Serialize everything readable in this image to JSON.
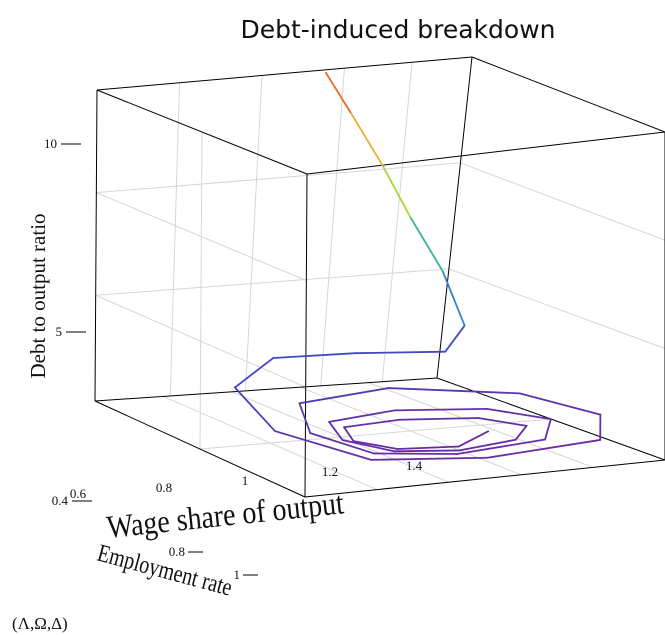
{
  "chart_data": {
    "type": "line",
    "projection": "3d",
    "title": "Debt-induced breakdown",
    "caption": "(Λ,Ω,Δ)",
    "x_axis": {
      "label": "Wage share of output",
      "ticks": [
        "0.6",
        "0.8",
        "1",
        "1.2",
        "1.4"
      ]
    },
    "y_axis": {
      "label": "Employment rate",
      "ticks": [
        "0.8",
        "1"
      ]
    },
    "z_axis": {
      "label": "Debt to output ratio",
      "ticks": [
        "0.4",
        "5",
        "10"
      ]
    },
    "grid": true,
    "series": [
      {
        "type": "trajectory",
        "color_scale": [
          "#6a2aa5",
          "#3a4fc8",
          "#2f9fd0",
          "#37c46a",
          "#d8e02a",
          "#f0a030",
          "#e8452c"
        ],
        "points": [
          [
            1.3,
            0.88,
            0.9
          ],
          [
            1.16,
            0.93,
            0.8
          ],
          [
            1.0,
            0.92,
            0.85
          ],
          [
            0.92,
            0.88,
            1.0
          ],
          [
            0.96,
            0.82,
            1.1
          ],
          [
            1.14,
            0.8,
            1.05
          ],
          [
            1.34,
            0.82,
            1.0
          ],
          [
            1.42,
            0.87,
            0.9
          ],
          [
            1.32,
            0.93,
            0.85
          ],
          [
            1.14,
            0.95,
            0.8
          ],
          [
            0.98,
            0.93,
            0.85
          ],
          [
            0.9,
            0.87,
            1.0
          ],
          [
            0.94,
            0.8,
            1.2
          ],
          [
            1.16,
            0.77,
            1.2
          ],
          [
            1.4,
            0.79,
            1.1
          ],
          [
            1.5,
            0.86,
            1.0
          ],
          [
            1.38,
            0.95,
            0.9
          ],
          [
            1.1,
            0.98,
            0.9
          ],
          [
            0.9,
            0.95,
            1.0
          ],
          [
            0.82,
            0.86,
            1.3
          ],
          [
            0.9,
            0.76,
            1.7
          ],
          [
            1.2,
            0.72,
            1.7
          ],
          [
            1.54,
            0.75,
            1.3
          ],
          [
            1.64,
            0.86,
            1.0
          ],
          [
            1.5,
            0.98,
            0.9
          ],
          [
            1.14,
            1.02,
            0.95
          ],
          [
            0.86,
            0.98,
            1.0
          ],
          [
            0.72,
            0.86,
            1.5
          ],
          [
            0.76,
            0.72,
            2.2
          ],
          [
            0.96,
            0.64,
            2.6
          ],
          [
            1.22,
            0.62,
            2.4
          ],
          [
            1.48,
            0.62,
            2.2
          ],
          [
            1.56,
            0.6,
            3.0
          ],
          [
            1.52,
            0.58,
            5.0
          ],
          [
            1.45,
            0.56,
            7.0
          ],
          [
            1.38,
            0.55,
            9.0
          ],
          [
            1.3,
            0.54,
            11.0
          ],
          [
            1.24,
            0.53,
            12.5
          ]
        ]
      }
    ]
  }
}
